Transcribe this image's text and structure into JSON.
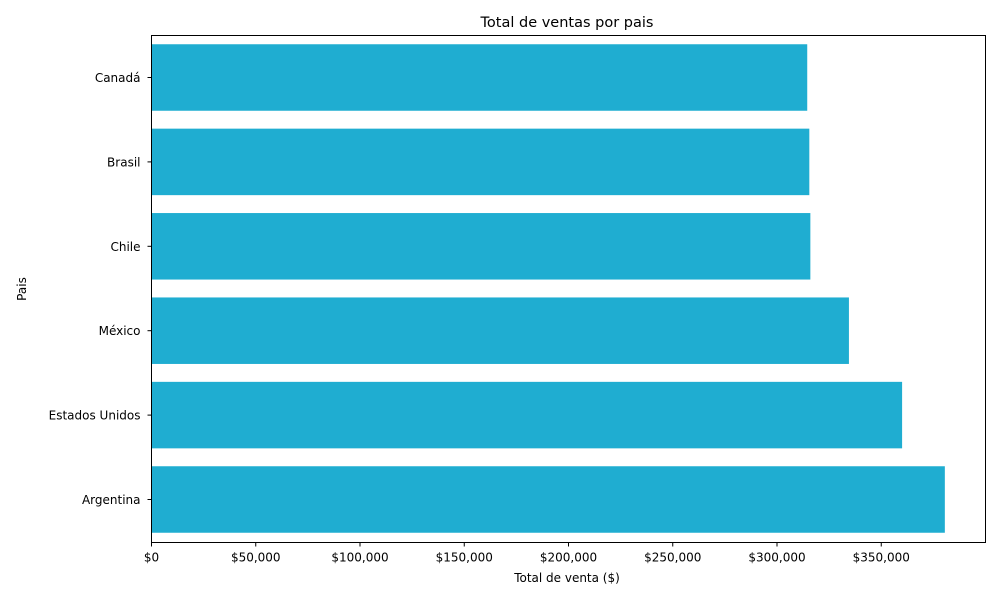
{
  "chart_data": {
    "type": "bar",
    "orientation": "horizontal",
    "title": "Total de ventas por pais",
    "xlabel": "Total de venta ($)",
    "ylabel": "Pais",
    "categories": [
      "Canadá",
      "Brasil",
      "Chile",
      "México",
      "Estados Unidos",
      "Argentina"
    ],
    "values": [
      314500,
      315500,
      316000,
      334500,
      360000,
      380500
    ],
    "xlim": [
      0,
      400000
    ],
    "xticks": [
      0,
      50000,
      100000,
      150000,
      200000,
      250000,
      300000,
      350000
    ],
    "xtick_labels": [
      "$0",
      "$50,000",
      "$100,000",
      "$150,000",
      "$200,000",
      "$250,000",
      "$300,000",
      "$350,000"
    ],
    "bar_color": "#1fadd1",
    "grid": false,
    "legend": "none"
  }
}
